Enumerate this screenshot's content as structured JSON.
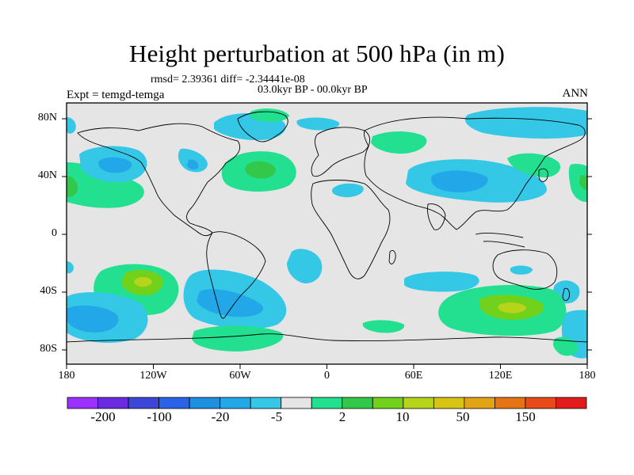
{
  "title": "Height perturbation at 500 hPa (in m)",
  "stats": "rmsd= 2.39361 diff= -2.34441e-08",
  "period": "03.0kyr BP - 00.0kyr BP",
  "experiment": "Expt = temgd-temga",
  "season": "ANN",
  "lat_labels": [
    "80N",
    "40N",
    "0",
    "40S",
    "80S"
  ],
  "lon_labels": [
    "180",
    "120W",
    "60W",
    "0",
    "60E",
    "120E",
    "180"
  ],
  "colorbar": {
    "labels": [
      "-200",
      "-100",
      "-20",
      "-5",
      "2",
      "10",
      "50",
      "150"
    ],
    "colors": [
      "#9b30ff",
      "#6a2ae0",
      "#3c46d9",
      "#2a62e8",
      "#1e90e0",
      "#22a8e8",
      "#34c8e6",
      "#e5e5e5",
      "#22e090",
      "#34c84a",
      "#72d11a",
      "#b8d41a",
      "#d8c414",
      "#e2a414",
      "#e67414",
      "#e84a18",
      "#e21c1c"
    ]
  },
  "palette": {
    "background": "#e5e5e5",
    "cyan": "#34c8e6",
    "blue": "#22a8e8",
    "deep_blue": "#1e90e0",
    "green": "#22e090",
    "lime": "#72d11a",
    "yellow": "#b8d41a"
  }
}
